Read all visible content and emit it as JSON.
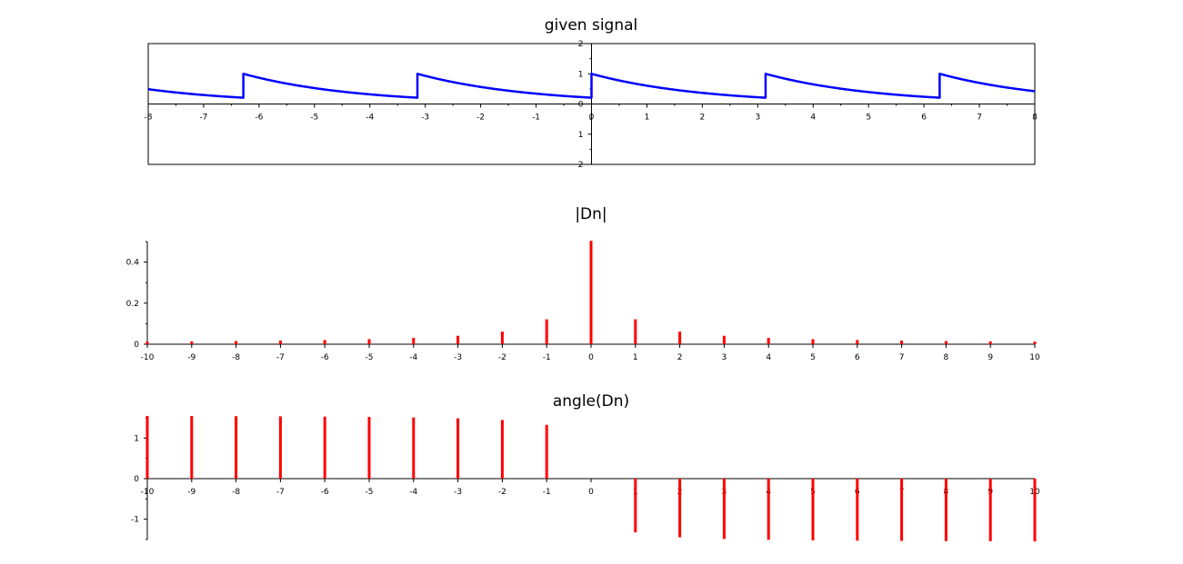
{
  "chart_data": [
    {
      "type": "line",
      "title": "given signal",
      "xlim": [
        -8,
        8
      ],
      "ylim": [
        -2,
        2
      ],
      "x_ticks": [
        -8,
        -7,
        -6,
        -5,
        -4,
        -3,
        -2,
        -1,
        0,
        1,
        2,
        3,
        4,
        5,
        6,
        7,
        8
      ],
      "y_ticks": [
        -2,
        -1,
        0,
        1,
        2
      ],
      "boxed": true,
      "grid": false,
      "color": "#0000ff",
      "series": [
        {
          "function": "exp(-t/2) over period pi, t in [0, pi), repeated",
          "x": [
            -8,
            -7.5,
            -7,
            -6.5,
            -6.2832,
            -6.2832,
            -6,
            -5.5,
            -5,
            -4.5,
            -4,
            -3.5,
            -3.1416,
            -3.1416,
            -3,
            -2.5,
            -2,
            -1.5,
            -1,
            -0.5,
            0,
            0,
            0.5,
            1,
            1.5,
            2,
            2.5,
            3,
            3.1416,
            3.1416,
            3.5,
            4,
            4.5,
            5,
            5.5,
            6,
            6.2832,
            6.2832,
            6.5,
            7,
            7.5,
            8
          ],
          "y": [
            0.411,
            0.324,
            0.254,
            0.218,
            0.208,
            1.0,
            0.868,
            0.678,
            0.528,
            0.412,
            0.321,
            0.25,
            0.208,
            1.0,
            0.932,
            0.727,
            0.566,
            0.441,
            0.344,
            0.268,
            0.208,
            1.0,
            0.779,
            0.607,
            0.472,
            0.368,
            0.287,
            0.223,
            0.208,
            1.0,
            0.836,
            0.651,
            0.507,
            0.395,
            0.308,
            0.24,
            0.208,
            1.0,
            0.898,
            0.7,
            0.545,
            0.425
          ]
        }
      ]
    },
    {
      "type": "bar",
      "title": "|Dn|",
      "xlim": [
        -10,
        10
      ],
      "ylim": [
        0,
        0.5
      ],
      "x_ticks": [
        -10,
        -9,
        -8,
        -7,
        -6,
        -5,
        -4,
        -3,
        -2,
        -1,
        0,
        1,
        2,
        3,
        4,
        5,
        6,
        7,
        8,
        9,
        10
      ],
      "y_ticks": [
        0,
        0.2,
        0.4
      ],
      "y_tick_labels": [
        "0",
        "0.2",
        "0.4"
      ],
      "color": "#ff0000",
      "grid": false,
      "x": [
        -10,
        -9,
        -8,
        -7,
        -6,
        -5,
        -4,
        -3,
        -2,
        -1,
        0,
        1,
        2,
        3,
        4,
        5,
        6,
        7,
        8,
        9,
        10
      ],
      "values": [
        0.0125,
        0.0138,
        0.0155,
        0.0177,
        0.0206,
        0.0247,
        0.0308,
        0.041,
        0.0614,
        0.1213,
        0.504,
        0.1213,
        0.0614,
        0.041,
        0.0308,
        0.0247,
        0.0206,
        0.0177,
        0.0155,
        0.0138,
        0.0125
      ]
    },
    {
      "type": "bar",
      "title": "angle(Dn)",
      "xlim": [
        -10,
        10
      ],
      "ylim": [
        -1.5,
        1.5
      ],
      "x_ticks": [
        -10,
        -9,
        -8,
        -7,
        -6,
        -5,
        -4,
        -3,
        -2,
        -1,
        0,
        1,
        2,
        3,
        4,
        5,
        6,
        7,
        8,
        9,
        10
      ],
      "y_ticks": [
        -1,
        0,
        1
      ],
      "color": "#ff0000",
      "grid": false,
      "x": [
        -10,
        -9,
        -8,
        -7,
        -6,
        -5,
        -4,
        -3,
        -2,
        -1,
        0,
        1,
        2,
        3,
        4,
        5,
        6,
        7,
        8,
        9,
        10
      ],
      "values": [
        1.546,
        1.543,
        1.54,
        1.535,
        1.529,
        1.521,
        1.508,
        1.488,
        1.446,
        1.326,
        0,
        -1.326,
        -1.446,
        -1.488,
        -1.508,
        -1.521,
        -1.529,
        -1.535,
        -1.54,
        -1.543,
        -1.546
      ]
    }
  ]
}
